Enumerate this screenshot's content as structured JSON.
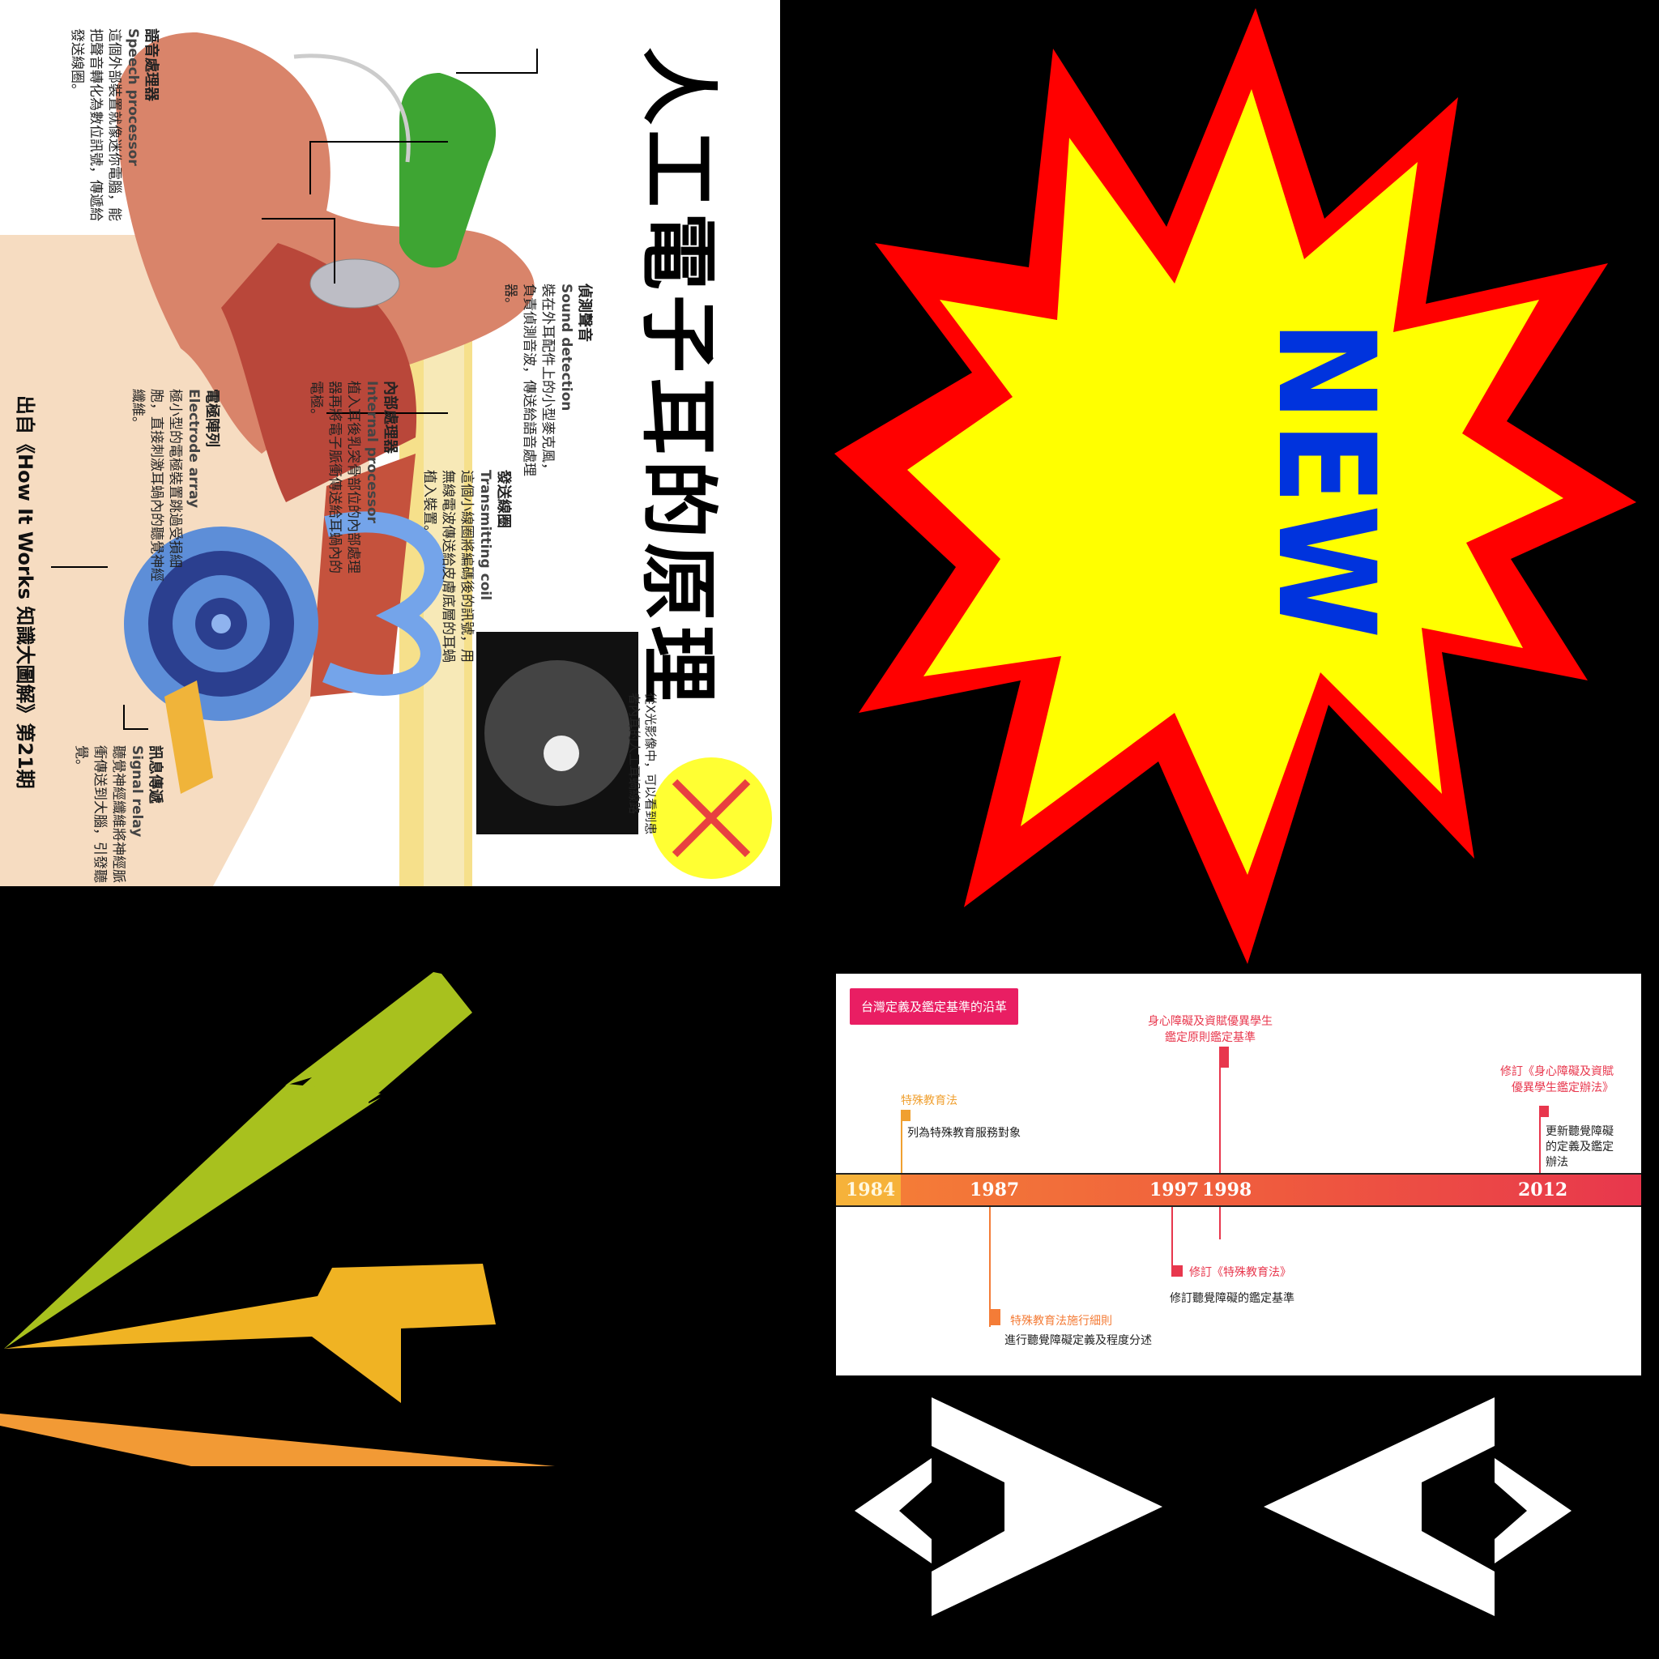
{
  "colors": {
    "background": "#000000",
    "starburst_outer": "#ff0000",
    "starburst_inner": "#ffff00",
    "new_text": "#0033dd",
    "bolt_green": "#a8c11e",
    "bolt_yellow": "#f0b323",
    "bolt_orange": "#f29a35",
    "timeline_pink": "#e91e63"
  },
  "ear_infographic": {
    "title": "人工電子耳的原理",
    "speech_processor": {
      "zh": "語音處理器",
      "en": "Speech processor",
      "desc": "這個外部裝置就像迷你電腦，能把聲音轉化為數位訊號，傳遞給發送線圈。"
    },
    "sound_detection": {
      "zh": "偵測聲音",
      "en": "Sound detection",
      "desc": "裝在外耳配件上的小型麥克風，負責偵測音波，傳送給語音處理器。"
    },
    "transmitting_coil": {
      "zh": "發送線圈",
      "en": "Transmitting coil",
      "desc": "這個小線圈將編碼後的訊號，用無線電波傳送給皮膚底層的耳蝸植入裝置。"
    },
    "internal_processor": {
      "zh": "內部處理器",
      "en": "Internal processor",
      "desc": "植入耳後乳突骨部位的內部處理器再將電子脈衝傳送給耳蝸內的電極。"
    },
    "electrode_array": {
      "zh": "電極陣列",
      "en": "Electrode array",
      "desc": "極小型的電極裝置跳過受損細胞，直接刺激耳蝸內的聽覺神經纖維。"
    },
    "signal_relay": {
      "zh": "訊息傳遞",
      "en": "Signal relay",
      "desc": "聽覺神經纖維將神經脈衝傳送到大腦，引發聽覺。"
    },
    "xray_caption": "從X光影像中，可以看到患者內耳的人工耳蝸線路",
    "source": "出自《How It Works 知識大圖解》第21期"
  },
  "new_badge": {
    "text": "NEW"
  },
  "timeline": {
    "tag": "台灣定義及鑑定基準的沿革",
    "years": [
      "1984",
      "1987",
      "1997",
      "1998",
      "2012"
    ],
    "events": {
      "e1984_head": "特殊教育法",
      "e1984_text": "列為特殊教育服務對象",
      "e1987_head": "特殊教育法施行細則",
      "e1987_text": "進行聽覺障礙定義及程度分述",
      "e1997_head": "修訂《特殊教育法》",
      "e1997_text": "修訂聽覺障礙的鑑定基準",
      "e1998_head_1": "身心障礙及資賦優異學生",
      "e1998_head_2": "鑑定原則鑑定基準",
      "e2012_head_1": "修訂《身心障礙及資賦",
      "e2012_head_2": "優異學生鑑定辦法》",
      "e2012_text_1": "更新聽覺障礙",
      "e2012_text_2": "的定義及鑑定",
      "e2012_text_3": "辦法"
    }
  }
}
